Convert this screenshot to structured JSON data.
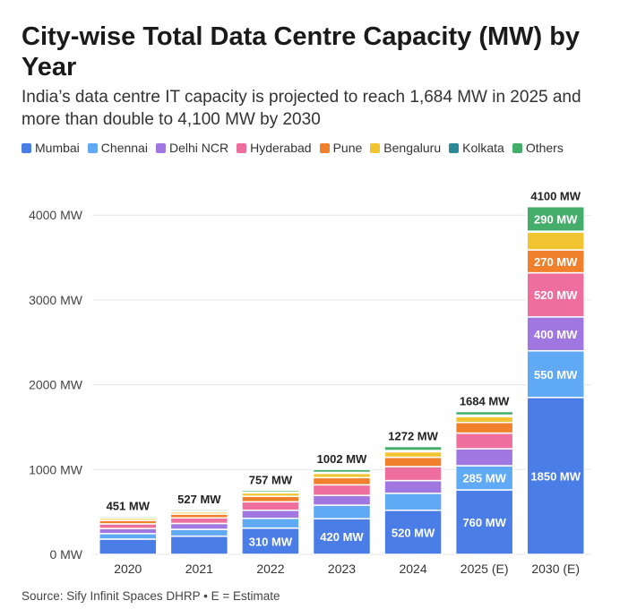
{
  "header": {
    "title": "City-wise Total Data Centre Capacity (MW) by Year",
    "subtitle": "India’s data centre IT capacity is projected to reach 1,684 MW in 2025 and more than double to 4,100 MW by 2030"
  },
  "footer": {
    "source": "Sify Infinit Spaces DHRP • E = Estimate",
    "source_prefix": "Source: "
  },
  "chart_data": {
    "type": "bar",
    "stacked": true,
    "title": "City-wise Total Data Centre Capacity (MW) by Year",
    "subtitle": "India’s data centre IT capacity is projected to reach 1,684 MW in 2025 and more than double to 4,100 MW by 2030",
    "xlabel": "",
    "ylabel": "",
    "categories": [
      "2020",
      "2021",
      "2022",
      "2023",
      "2024",
      "2025 (E)",
      "2030 (E)"
    ],
    "totals": [
      451,
      527,
      757,
      1002,
      1272,
      1684,
      4100
    ],
    "total_suffix": " MW",
    "y_ticks": [
      0,
      1000,
      2000,
      3000,
      4000
    ],
    "y_tick_labels": [
      "0 MW",
      "1000 MW",
      "2000 MW",
      "3000 MW",
      "4000 MW"
    ],
    "ylim": [
      0,
      4300
    ],
    "grid": true,
    "legend_position": "top-left",
    "series": [
      {
        "name": "Mumbai",
        "color": "#4a7ee6",
        "values": [
          180,
          215,
          310,
          420,
          520,
          760,
          1850
        ],
        "labels": [
          "",
          "",
          "310 MW",
          "420 MW",
          "520 MW",
          "760 MW",
          "1850 MW"
        ]
      },
      {
        "name": "Chennai",
        "color": "#5fa9f5",
        "values": [
          65,
          80,
          115,
          160,
          200,
          285,
          550
        ],
        "labels": [
          "",
          "",
          "",
          "",
          "",
          "285 MW",
          "550 MW"
        ]
      },
      {
        "name": "Delhi NCR",
        "color": "#a077e0",
        "values": [
          60,
          70,
          95,
          115,
          150,
          200,
          400
        ],
        "labels": [
          "",
          "",
          "",
          "",
          "",
          "",
          "400 MW"
        ]
      },
      {
        "name": "Hyderabad",
        "color": "#ee6f9e",
        "values": [
          55,
          65,
          100,
          125,
          165,
          185,
          520
        ],
        "labels": [
          "",
          "",
          "",
          "",
          "",
          "",
          "520 MW"
        ]
      },
      {
        "name": "Pune",
        "color": "#f0802c",
        "values": [
          40,
          45,
          65,
          85,
          110,
          125,
          270
        ],
        "labels": [
          "",
          "",
          "",
          "",
          "",
          "",
          "270 MW"
        ]
      },
      {
        "name": "Bengaluru",
        "color": "#f2c431",
        "values": [
          25,
          25,
          40,
          50,
          65,
          70,
          210
        ],
        "labels": [
          "",
          "",
          "",
          "",
          "",
          "",
          ""
        ]
      },
      {
        "name": "Kolkata",
        "color": "#2a8a97",
        "values": [
          8,
          8,
          10,
          12,
          15,
          17,
          10
        ],
        "labels": [
          "",
          "",
          "",
          "",
          "",
          "",
          ""
        ]
      },
      {
        "name": "Others",
        "color": "#44ad6a",
        "values": [
          18,
          19,
          22,
          35,
          47,
          42,
          290
        ],
        "labels": [
          "",
          "",
          "",
          "",
          "",
          "",
          "290 MW"
        ]
      }
    ]
  }
}
